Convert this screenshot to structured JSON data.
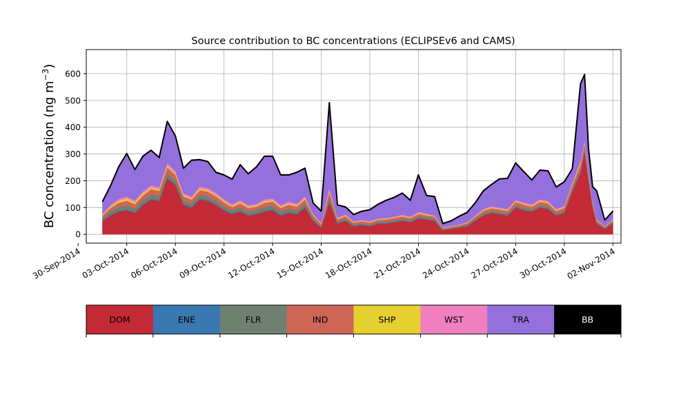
{
  "chart_data": {
    "type": "area",
    "title": "Source contribution to BC concentrations (ECLIPSEv6 and CAMS)",
    "ylabel": "BC concentration (ng m",
    "ylabel_sup": "−3",
    "ylabel_close": ")",
    "xlabel": "",
    "xlim": [
      "2014-09-30T12:00",
      "2014-11-02T12:00"
    ],
    "ylim": [
      -33,
      690
    ],
    "grid": true,
    "x_tick_labels": [
      "30-Sep-2014",
      "03-Oct-2014",
      "06-Oct-2014",
      "09-Oct-2014",
      "12-Oct-2014",
      "15-Oct-2014",
      "18-Oct-2014",
      "21-Oct-2014",
      "24-Oct-2014",
      "27-Oct-2014",
      "30-Oct-2014",
      "02-Nov-2014"
    ],
    "x_tick_dates": [
      "2014-09-30",
      "2014-10-03",
      "2014-10-06",
      "2014-10-09",
      "2014-10-12",
      "2014-10-15",
      "2014-10-18",
      "2014-10-21",
      "2014-10-24",
      "2014-10-27",
      "2014-10-30",
      "2014-11-02"
    ],
    "y_ticks": [
      0,
      100,
      200,
      300,
      400,
      500,
      600
    ],
    "x": [
      "2014-10-01T12:00",
      "2014-10-02T00:00",
      "2014-10-02T12:00",
      "2014-10-03T00:00",
      "2014-10-03T12:00",
      "2014-10-04T00:00",
      "2014-10-04T12:00",
      "2014-10-05T00:00",
      "2014-10-05T12:00",
      "2014-10-06T00:00",
      "2014-10-06T12:00",
      "2014-10-07T00:00",
      "2014-10-07T12:00",
      "2014-10-08T00:00",
      "2014-10-08T12:00",
      "2014-10-09T00:00",
      "2014-10-09T12:00",
      "2014-10-10T00:00",
      "2014-10-10T12:00",
      "2014-10-11T00:00",
      "2014-10-11T12:00",
      "2014-10-12T00:00",
      "2014-10-12T12:00",
      "2014-10-13T00:00",
      "2014-10-13T12:00",
      "2014-10-14T00:00",
      "2014-10-14T12:00",
      "2014-10-15T00:00",
      "2014-10-15T12:00",
      "2014-10-16T00:00",
      "2014-10-16T12:00",
      "2014-10-17T00:00",
      "2014-10-17T12:00",
      "2014-10-18T00:00",
      "2014-10-18T12:00",
      "2014-10-19T00:00",
      "2014-10-19T12:00",
      "2014-10-20T00:00",
      "2014-10-20T12:00",
      "2014-10-21T00:00",
      "2014-10-21T12:00",
      "2014-10-22T00:00",
      "2014-10-22T12:00",
      "2014-10-23T00:00",
      "2014-10-23T12:00",
      "2014-10-24T00:00",
      "2014-10-24T12:00",
      "2014-10-25T00:00",
      "2014-10-25T12:00",
      "2014-10-26T00:00",
      "2014-10-26T12:00",
      "2014-10-27T00:00",
      "2014-10-27T12:00",
      "2014-10-28T00:00",
      "2014-10-28T12:00",
      "2014-10-29T00:00",
      "2014-10-29T12:00",
      "2014-10-30T00:00",
      "2014-10-30T12:00",
      "2014-10-31T00:00",
      "2014-10-31T06:00",
      "2014-10-31T12:00",
      "2014-10-31T18:00",
      "2014-11-01T00:00",
      "2014-11-01T12:00",
      "2014-11-02T00:00"
    ],
    "series": [
      {
        "name": "DOM",
        "color": "#c42a35",
        "values": [
          50,
          70,
          85,
          90,
          80,
          110,
          130,
          125,
          210,
          185,
          110,
          100,
          130,
          125,
          110,
          90,
          75,
          85,
          70,
          75,
          85,
          90,
          70,
          80,
          75,
          100,
          50,
          25,
          120,
          40,
          50,
          30,
          35,
          30,
          40,
          40,
          45,
          50,
          45,
          60,
          55,
          50,
          15,
          20,
          25,
          30,
          50,
          70,
          80,
          75,
          70,
          100,
          90,
          85,
          100,
          95,
          70,
          80,
          160,
          230,
          310,
          200,
          100,
          40,
          20,
          40
        ]
      },
      {
        "name": "ENE",
        "color": "#3a78b0",
        "values": [
          2,
          3,
          3,
          3,
          3,
          3,
          3,
          3,
          3,
          3,
          3,
          3,
          3,
          3,
          3,
          3,
          3,
          3,
          3,
          3,
          3,
          3,
          3,
          3,
          3,
          3,
          2,
          2,
          3,
          2,
          2,
          2,
          2,
          2,
          2,
          2,
          2,
          2,
          2,
          2,
          2,
          2,
          1,
          1,
          1,
          2,
          2,
          2,
          2,
          2,
          2,
          2,
          2,
          2,
          2,
          2,
          2,
          2,
          3,
          3,
          3,
          3,
          2,
          2,
          1,
          2
        ]
      },
      {
        "name": "FLR",
        "color": "#6f8070",
        "values": [
          8,
          12,
          14,
          15,
          14,
          15,
          16,
          15,
          16,
          15,
          13,
          12,
          14,
          14,
          13,
          12,
          11,
          13,
          12,
          12,
          14,
          14,
          12,
          13,
          12,
          12,
          8,
          5,
          15,
          6,
          7,
          5,
          5,
          5,
          5,
          6,
          6,
          6,
          6,
          6,
          6,
          6,
          3,
          3,
          3,
          4,
          5,
          6,
          6,
          6,
          6,
          7,
          7,
          6,
          7,
          7,
          6,
          6,
          8,
          10,
          10,
          9,
          6,
          4,
          3,
          5
        ]
      },
      {
        "name": "IND",
        "color": "#cd6657",
        "values": [
          10,
          14,
          16,
          18,
          16,
          18,
          20,
          19,
          22,
          20,
          16,
          15,
          18,
          18,
          17,
          15,
          13,
          15,
          14,
          14,
          16,
          16,
          14,
          15,
          14,
          16,
          10,
          6,
          20,
          8,
          9,
          7,
          7,
          7,
          7,
          8,
          8,
          9,
          8,
          9,
          8,
          8,
          4,
          4,
          5,
          6,
          8,
          10,
          10,
          10,
          10,
          12,
          12,
          11,
          13,
          12,
          10,
          11,
          14,
          20,
          18,
          15,
          10,
          6,
          4,
          6
        ]
      },
      {
        "name": "SHP",
        "color": "#e6cf30",
        "values": [
          3,
          5,
          7,
          8,
          7,
          7,
          6,
          6,
          6,
          5,
          5,
          4,
          6,
          5,
          5,
          5,
          4,
          5,
          4,
          4,
          5,
          5,
          4,
          5,
          4,
          5,
          3,
          2,
          6,
          3,
          3,
          2,
          2,
          2,
          2,
          2,
          2,
          3,
          2,
          3,
          3,
          2,
          1,
          1,
          1,
          2,
          2,
          3,
          3,
          3,
          3,
          3,
          3,
          3,
          4,
          4,
          3,
          3,
          4,
          5,
          5,
          4,
          3,
          2,
          1,
          2
        ]
      },
      {
        "name": "WST",
        "color": "#f080c0",
        "values": [
          4,
          6,
          7,
          8,
          7,
          8,
          9,
          9,
          10,
          9,
          7,
          7,
          8,
          8,
          7,
          7,
          6,
          7,
          6,
          6,
          7,
          7,
          6,
          7,
          6,
          7,
          4,
          3,
          10,
          4,
          4,
          3,
          3,
          3,
          3,
          3,
          3,
          4,
          3,
          4,
          4,
          3,
          2,
          2,
          2,
          2,
          3,
          4,
          4,
          4,
          4,
          5,
          5,
          5,
          5,
          5,
          4,
          4,
          6,
          8,
          8,
          6,
          4,
          3,
          2,
          3
        ]
      },
      {
        "name": "TRA",
        "color": "#9370db",
        "values": [
          43,
          70,
          118,
          158,
          113,
          129,
          128,
          108,
          153,
          128,
          91,
          134,
          98,
          97,
          75,
          88,
          92,
          130,
          115,
          136,
          160,
          155,
          111,
          97,
          116,
          102,
          38,
          42,
          316,
          45,
          25,
          23,
          30,
          41,
          51,
          64,
          70,
          78,
          59,
          136,
          65,
          68,
          12,
          17,
          28,
          34,
          45,
          65,
          79,
          105,
          112,
          136,
          113,
          89,
          107,
          110,
          80,
          88,
          48,
          284,
          241,
          80,
          51,
          103,
          20,
          27
        ]
      },
      {
        "name": "BB",
        "color": "#000000",
        "values": [
          2,
          2,
          2,
          2,
          2,
          2,
          2,
          2,
          2,
          2,
          2,
          2,
          2,
          2,
          2,
          2,
          2,
          2,
          2,
          2,
          2,
          2,
          2,
          2,
          2,
          2,
          2,
          2,
          2,
          2,
          2,
          2,
          2,
          2,
          2,
          2,
          2,
          2,
          2,
          2,
          2,
          2,
          2,
          2,
          2,
          2,
          2,
          2,
          2,
          2,
          2,
          2,
          2,
          2,
          2,
          2,
          2,
          2,
          2,
          2,
          2,
          2,
          2,
          2,
          2,
          2
        ]
      }
    ]
  }
}
